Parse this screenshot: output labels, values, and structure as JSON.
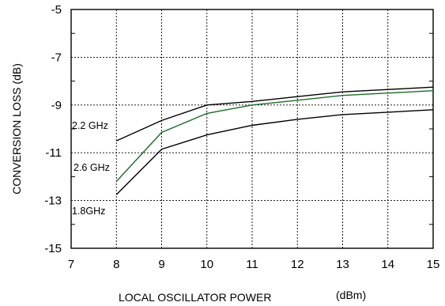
{
  "chart_data": {
    "type": "line",
    "xlabel": "LOCAL OSCILLATOR POWER",
    "xlabel_unit": "(dBm)",
    "ylabel": "CONVERSION LOSS (dB)",
    "xlim": [
      7,
      15
    ],
    "ylim": [
      -15,
      -5
    ],
    "x_ticks": [
      7,
      8,
      9,
      10,
      11,
      12,
      13,
      14,
      15
    ],
    "y_ticks": [
      -5,
      -7,
      -9,
      -11,
      -13,
      -15
    ],
    "grid": true,
    "x": [
      8,
      9,
      10,
      11,
      12,
      13,
      14,
      15
    ],
    "series": [
      {
        "name": "2.2 GHz",
        "color": "#000000",
        "values": [
          -10.5,
          -9.65,
          -9.0,
          -8.85,
          -8.65,
          -8.45,
          -8.35,
          -8.25
        ]
      },
      {
        "name": "2.6 GHz",
        "color": "#1e6b2a",
        "values": [
          -12.2,
          -10.15,
          -9.35,
          -9.0,
          -8.8,
          -8.6,
          -8.5,
          -8.4
        ]
      },
      {
        "name": "1.8GHz",
        "color": "#000000",
        "values": [
          -12.75,
          -10.85,
          -10.25,
          -9.85,
          -9.6,
          -9.4,
          -9.3,
          -9.2
        ]
      }
    ]
  }
}
